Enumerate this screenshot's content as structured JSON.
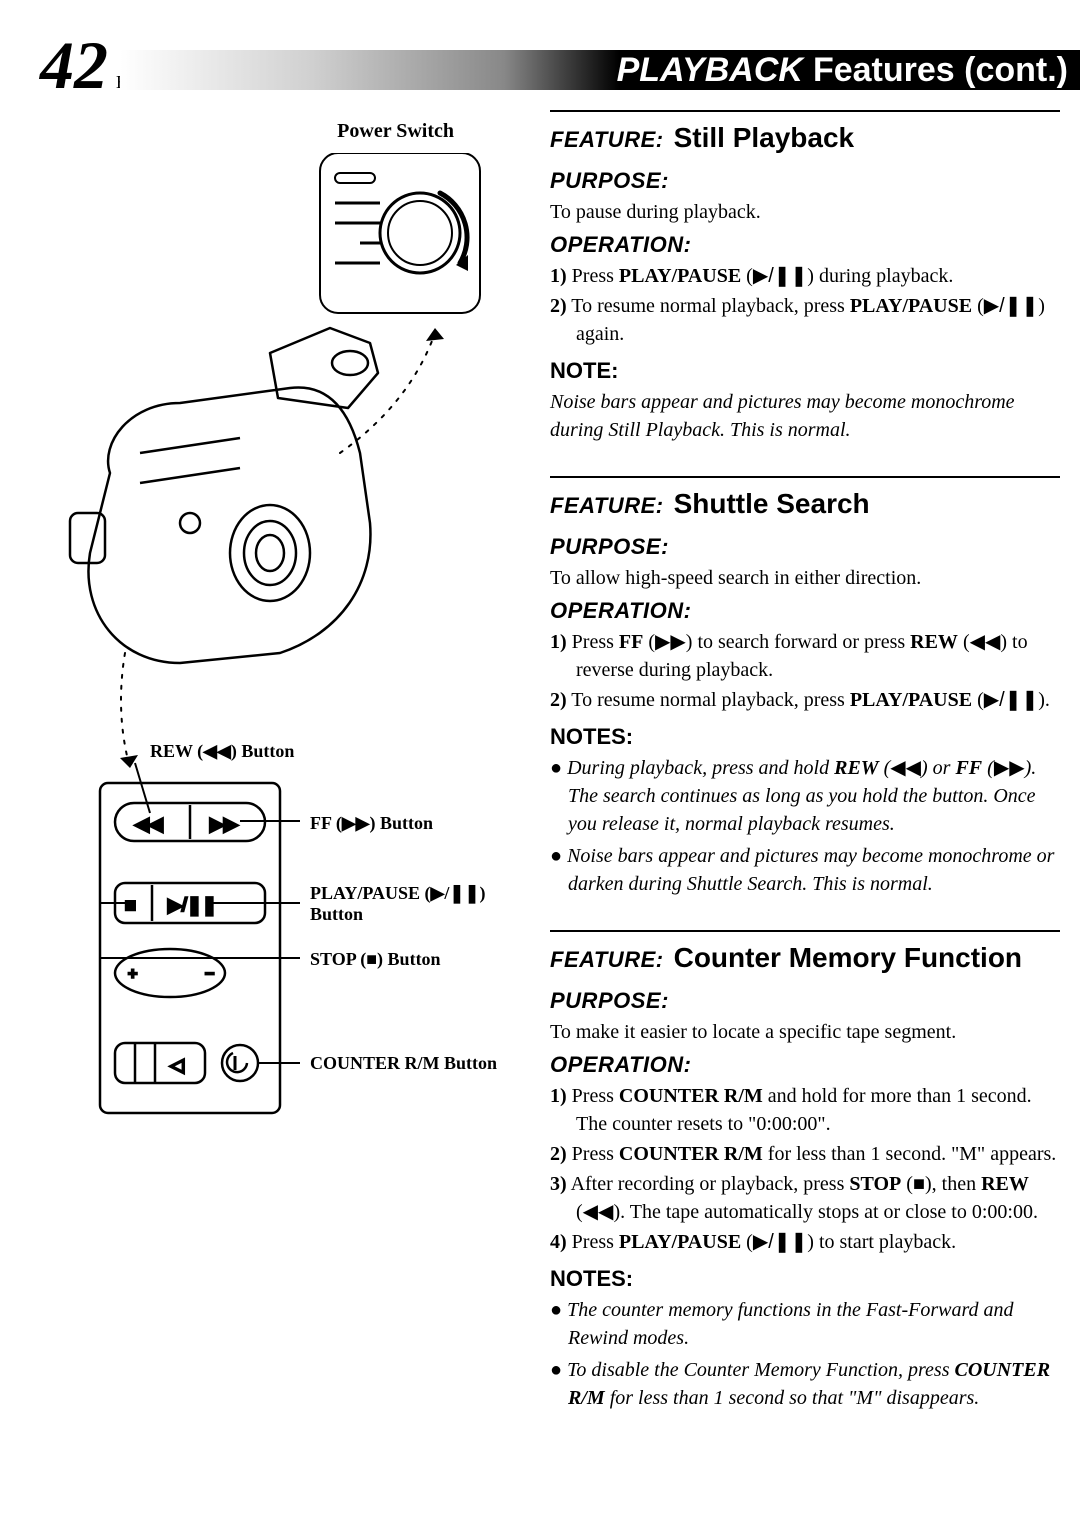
{
  "page": {
    "number": "42",
    "lang": "EN",
    "title": "PLAYBACK",
    "subtitle": "Features (cont.)"
  },
  "left": {
    "powerSwitch": "Power Switch",
    "callouts": {
      "rew": "REW (◀◀) Button",
      "ff": "FF (▶▶) Button",
      "playPause": "PLAY/PAUSE (▶/❚❚) Button",
      "stop": "STOP (■) Button",
      "counter": "COUNTER R/M Button"
    }
  },
  "sections": [
    {
      "feature": "Still Playback",
      "purpose": "To pause during playback.",
      "operation": [
        {
          "n": "1)",
          "html": "Press <b>PLAY/PAUSE</b> (<span class='glyph'>▶/❚❚</span>) during playback."
        },
        {
          "n": "2)",
          "html": "To resume normal playback, press <b>PLAY/PAUSE</b> (<span class='glyph'>▶/❚❚</span>) again."
        }
      ],
      "noteHead": "NOTE:",
      "noteBody": "Noise bars appear and pictures may become monochrome during Still Playback. This is normal."
    },
    {
      "feature": "Shuttle Search",
      "purpose": "To allow high-speed search in either direction.",
      "operation": [
        {
          "n": "1)",
          "html": "Press <b>FF</b> (<span class='glyph'>▶▶</span>) to search forward or press <b>REW</b> (<span class='glyph'>◀◀</span>) to reverse during playback."
        },
        {
          "n": "2)",
          "html": "To resume normal playback, press <b>PLAY/PAUSE</b> (<span class='glyph'>▶/❚❚</span>)."
        }
      ],
      "noteHead": "NOTES:",
      "notes": [
        "During playback, press and hold <b>REW</b> (<span class='glyph'>◀◀</span>) or <b>FF</b> (<span class='glyph'>▶▶</span>). The search continues as long as you hold the button. Once you release it, normal playback resumes.",
        "Noise bars appear and pictures may become monochrome or darken during Shuttle Search. This is normal."
      ]
    },
    {
      "feature": "Counter Memory Function",
      "purpose": "To make it easier to locate a specific tape segment.",
      "operation": [
        {
          "n": "1)",
          "html": "Press <b>COUNTER R/M</b> and hold for more than 1 second. The counter resets to \"0:00:00\"."
        },
        {
          "n": "2)",
          "html": "Press <b>COUNTER R/M</b> for less than 1 second. \"M\" appears."
        },
        {
          "n": "3)",
          "html": "After recording or playback, press <b>STOP</b> (<span class='glyph'>■</span>), then <b>REW</b> (<span class='glyph'>◀◀</span>). The tape automatically stops at or close to 0:00:00."
        },
        {
          "n": "4)",
          "html": "Press <b>PLAY/PAUSE</b> (<span class='glyph'>▶/❚❚</span>) to start playback."
        }
      ],
      "noteHead": "NOTES:",
      "notes": [
        "The counter memory functions in the Fast-Forward and Rewind modes.",
        "To disable the Counter Memory Function, press <b>COUNTER R/M</b> for less than 1 second so that \"M\" disappears."
      ]
    }
  ],
  "style": {
    "accent": "#000000",
    "bg": "#ffffff",
    "headerGradient": [
      "#ffffff",
      "#d0d0d0",
      "#888888",
      "#000000"
    ],
    "bodyFont": "Optima, Georgia, serif",
    "headFont": "Arial Black, Helvetica, sans-serif",
    "pageNumberSize": 68,
    "featureNameSize": 28,
    "bodySize": 20
  }
}
